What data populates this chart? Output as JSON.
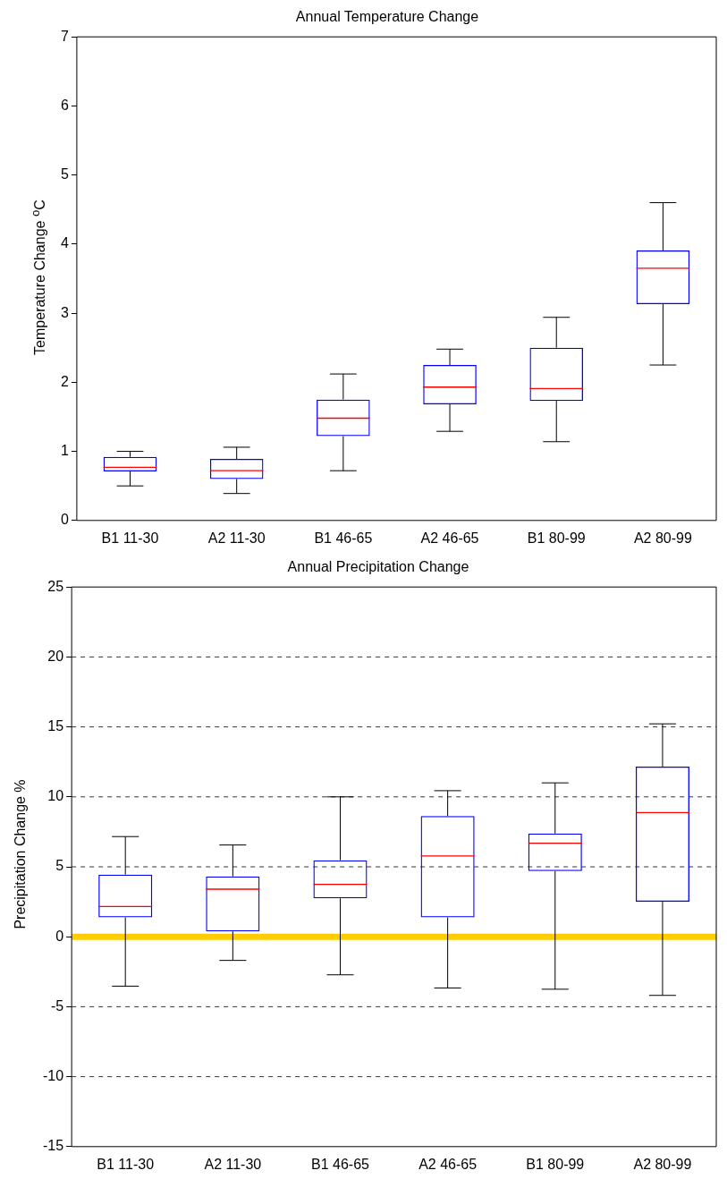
{
  "chart_data": [
    {
      "type": "box",
      "title": "Annual Temperature Change",
      "ylabel": "Temperature Change $^{o}$C",
      "categories": [
        "B1 11-30",
        "A2 11-30",
        "B1 46-65",
        "A2 46-65",
        "B1 80-99",
        "A2 80-99"
      ],
      "color": "#0000ff",
      "ylim": [
        0,
        7
      ],
      "yticks": [
        0,
        1,
        2,
        3,
        4,
        5,
        6,
        7
      ],
      "grid": false,
      "legend": false,
      "boxes": [
        {
          "low": 0.5,
          "q1": 0.71,
          "median": 0.77,
          "q3": 0.92,
          "high": 1.0
        },
        {
          "low": 0.39,
          "q1": 0.6,
          "median": 0.72,
          "q3": 0.89,
          "high": 1.06
        },
        {
          "low": 0.72,
          "q1": 1.22,
          "median": 1.48,
          "q3": 1.75,
          "high": 2.12
        },
        {
          "low": 1.29,
          "q1": 1.68,
          "median": 1.93,
          "q3": 2.25,
          "high": 2.48
        },
        {
          "low": 1.14,
          "q1": 1.73,
          "median": 1.91,
          "q3": 2.5,
          "high": 2.94
        },
        {
          "low": 2.25,
          "q1": 3.13,
          "median": 3.65,
          "q3": 3.91,
          "high": 4.6
        }
      ]
    },
    {
      "type": "box",
      "title": "Annual Precipitation Change",
      "ylabel": "Precipitation Change %",
      "categories": [
        "B1 11-30",
        "A2 11-30",
        "B1 46-65",
        "A2 46-65",
        "B1 80-99",
        "A2 80-99"
      ],
      "color": "#0000ff",
      "ylim": [
        -15,
        25
      ],
      "yticks": [
        -15,
        -10,
        -5,
        0,
        5,
        10,
        15,
        20,
        25
      ],
      "grid": "y",
      "legend": false,
      "ref_lines": [
        {
          "axis": "y",
          "value": 0,
          "label": null,
          "color": "#ffcc00"
        }
      ],
      "boxes": [
        {
          "low": -3.53,
          "q1": 1.38,
          "median": 2.16,
          "q3": 4.44,
          "high": 7.16
        },
        {
          "low": -1.69,
          "q1": 0.38,
          "median": 3.4,
          "q3": 4.31,
          "high": 6.56
        },
        {
          "low": -2.72,
          "q1": 2.75,
          "median": 3.75,
          "q3": 5.47,
          "high": 10
        },
        {
          "low": -3.66,
          "q1": 1.38,
          "median": 5.78,
          "q3": 8.63,
          "high": 10.44
        },
        {
          "low": -3.75,
          "q1": 4.69,
          "median": 6.69,
          "q3": 7.38,
          "high": 11
        },
        {
          "low": -4.19,
          "q1": 2.5,
          "median": 8.88,
          "q3": 12.16,
          "high": 15.22
        }
      ]
    }
  ]
}
